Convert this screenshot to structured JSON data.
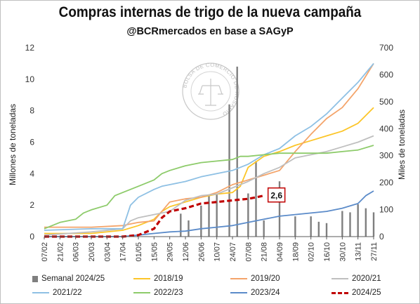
{
  "title": "Compras internas de trigo de la nueva campaña",
  "subtitle": "@BCRmercados en base a SAGyP",
  "watermark_text": "BOLSA DE COMERCIO DE ROSARIO",
  "chart_data": {
    "type": "line",
    "ylabel_left": "Millones de toneladas",
    "ylabel_right": "Miles de toneladas",
    "ylim_left": [
      0,
      12
    ],
    "ylim_right": [
      0,
      700
    ],
    "yticks_left": [
      "0",
      "2",
      "4",
      "6",
      "8",
      "10",
      "12"
    ],
    "yticks_right": [
      "0",
      "100",
      "200",
      "300",
      "400",
      "500",
      "600",
      "700"
    ],
    "xtick_labels": [
      "07/02",
      "21/02",
      "06/03",
      "20/03",
      "03/04",
      "17/04",
      "01/05",
      "15/05",
      "29/05",
      "12/06",
      "26/06",
      "10/07",
      "24/07",
      "07/08",
      "21/08",
      "04/09",
      "18/09",
      "02/10",
      "16/10",
      "30/10",
      "13/11",
      "27/11"
    ],
    "annotation": "2,6",
    "legend_position": "bottom",
    "grid": false,
    "series": [
      {
        "name": "Semanal 2024/25",
        "type": "bar",
        "axis": "right",
        "color": "#7f7f7f",
        "points": [
          [
            8.7,
            85
          ],
          [
            9.2,
            60
          ],
          [
            10,
            115
          ],
          [
            10.5,
            155
          ],
          [
            11,
            160
          ],
          [
            11.8,
            490
          ],
          [
            12.3,
            630
          ],
          [
            13,
            160
          ],
          [
            13.5,
            280
          ],
          [
            14,
            60
          ],
          [
            15,
            205
          ],
          [
            16,
            75
          ],
          [
            17,
            75
          ],
          [
            17.5,
            55
          ],
          [
            18,
            50
          ],
          [
            19,
            95
          ],
          [
            19.5,
            90
          ],
          [
            20,
            120
          ],
          [
            20.5,
            105
          ],
          [
            21,
            90
          ]
        ]
      },
      {
        "name": "2018/19",
        "color": "#fcc528",
        "points": [
          [
            0,
            0.2
          ],
          [
            3,
            0.2
          ],
          [
            5,
            0.4
          ],
          [
            6,
            0.7
          ],
          [
            7,
            1.1
          ],
          [
            7.5,
            1.6
          ],
          [
            8,
            1.9
          ],
          [
            9,
            2.2
          ],
          [
            10,
            2.5
          ],
          [
            11,
            2.7
          ],
          [
            12,
            2.8
          ],
          [
            12.5,
            3.2
          ],
          [
            13,
            4.4
          ],
          [
            14,
            5.1
          ],
          [
            15,
            5.4
          ],
          [
            16,
            5.8
          ],
          [
            17,
            6.1
          ],
          [
            18,
            6.4
          ],
          [
            19,
            6.7
          ],
          [
            20,
            7.2
          ],
          [
            21,
            8.2
          ]
        ]
      },
      {
        "name": "2019/20",
        "color": "#f4a46a",
        "points": [
          [
            0,
            0.6
          ],
          [
            3,
            0.6
          ],
          [
            5,
            0.7
          ],
          [
            6,
            0.9
          ],
          [
            7,
            1.0
          ],
          [
            7.5,
            1.6
          ],
          [
            8,
            2.2
          ],
          [
            9,
            2.4
          ],
          [
            10,
            2.5
          ],
          [
            11,
            2.8
          ],
          [
            12,
            3.3
          ],
          [
            13,
            3.6
          ],
          [
            14,
            3.9
          ],
          [
            15,
            4.2
          ],
          [
            16,
            5.4
          ],
          [
            17,
            6.5
          ],
          [
            18,
            7.5
          ],
          [
            19,
            8.2
          ],
          [
            20,
            9.4
          ],
          [
            21,
            11.0
          ]
        ]
      },
      {
        "name": "2020/21",
        "color": "#bfbfbf",
        "points": [
          [
            0,
            0.1
          ],
          [
            3,
            0.3
          ],
          [
            5,
            0.5
          ],
          [
            5.5,
            1.0
          ],
          [
            6,
            1.2
          ],
          [
            7,
            1.4
          ],
          [
            8,
            1.6
          ],
          [
            9,
            2.3
          ],
          [
            10,
            2.6
          ],
          [
            11,
            2.7
          ],
          [
            12,
            3.1
          ],
          [
            13,
            3.5
          ],
          [
            14,
            4.0
          ],
          [
            15,
            4.4
          ],
          [
            16,
            5.0
          ],
          [
            17,
            5.2
          ],
          [
            18,
            5.4
          ],
          [
            19,
            5.7
          ],
          [
            20,
            6.0
          ],
          [
            21,
            6.4
          ]
        ]
      },
      {
        "name": "2021/22",
        "color": "#8ec0e4",
        "points": [
          [
            0,
            0.4
          ],
          [
            3,
            0.5
          ],
          [
            5,
            0.5
          ],
          [
            5.5,
            2.0
          ],
          [
            6,
            2.5
          ],
          [
            7,
            3.0
          ],
          [
            7.5,
            3.2
          ],
          [
            8,
            3.3
          ],
          [
            9,
            3.5
          ],
          [
            10,
            3.8
          ],
          [
            11,
            4.0
          ],
          [
            12,
            4.2
          ],
          [
            13,
            4.6
          ],
          [
            14,
            5.2
          ],
          [
            15,
            5.6
          ],
          [
            16,
            6.4
          ],
          [
            17,
            7.0
          ],
          [
            18,
            7.8
          ],
          [
            19,
            8.8
          ],
          [
            20,
            9.8
          ],
          [
            21,
            11.0
          ]
        ]
      },
      {
        "name": "2022/23",
        "color": "#8dcb6a",
        "points": [
          [
            0,
            0.5
          ],
          [
            0.5,
            0.7
          ],
          [
            1,
            0.9
          ],
          [
            2,
            1.1
          ],
          [
            2.5,
            1.5
          ],
          [
            3,
            1.7
          ],
          [
            4,
            2.0
          ],
          [
            4.5,
            2.6
          ],
          [
            5,
            2.8
          ],
          [
            6,
            3.2
          ],
          [
            7,
            3.6
          ],
          [
            7.5,
            4.0
          ],
          [
            8,
            4.2
          ],
          [
            9,
            4.5
          ],
          [
            10,
            4.7
          ],
          [
            11,
            4.8
          ],
          [
            12,
            4.9
          ],
          [
            12.5,
            5.1
          ],
          [
            13,
            5.1
          ],
          [
            14,
            5.2
          ],
          [
            15,
            5.3
          ],
          [
            16,
            5.3
          ],
          [
            17,
            5.3
          ],
          [
            18,
            5.3
          ],
          [
            19,
            5.4
          ],
          [
            20,
            5.5
          ],
          [
            21,
            5.8
          ]
        ]
      },
      {
        "name": "2023/24",
        "color": "#5b8bc9",
        "points": [
          [
            0,
            0
          ],
          [
            5,
            0
          ],
          [
            6,
            0.1
          ],
          [
            7,
            0.2
          ],
          [
            8,
            0.3
          ],
          [
            9,
            0.35
          ],
          [
            10,
            0.5
          ],
          [
            11,
            0.6
          ],
          [
            12,
            0.7
          ],
          [
            13,
            0.9
          ],
          [
            14,
            1.1
          ],
          [
            15,
            1.3
          ],
          [
            16,
            1.4
          ],
          [
            17,
            1.5
          ],
          [
            18,
            1.6
          ],
          [
            19,
            1.8
          ],
          [
            20,
            2.1
          ],
          [
            20.5,
            2.6
          ],
          [
            21,
            2.9
          ]
        ]
      },
      {
        "name": "2024/25",
        "color": "#c00000",
        "dashed": true,
        "points": [
          [
            0,
            0
          ],
          [
            5,
            0
          ],
          [
            6,
            0.1
          ],
          [
            7,
            0.5
          ],
          [
            7.5,
            1.2
          ],
          [
            8,
            1.6
          ],
          [
            9,
            1.8
          ],
          [
            10,
            2.1
          ],
          [
            11,
            2.2
          ],
          [
            12,
            2.3
          ],
          [
            13,
            2.4
          ],
          [
            13.5,
            2.5
          ],
          [
            14,
            2.6
          ]
        ]
      }
    ]
  }
}
